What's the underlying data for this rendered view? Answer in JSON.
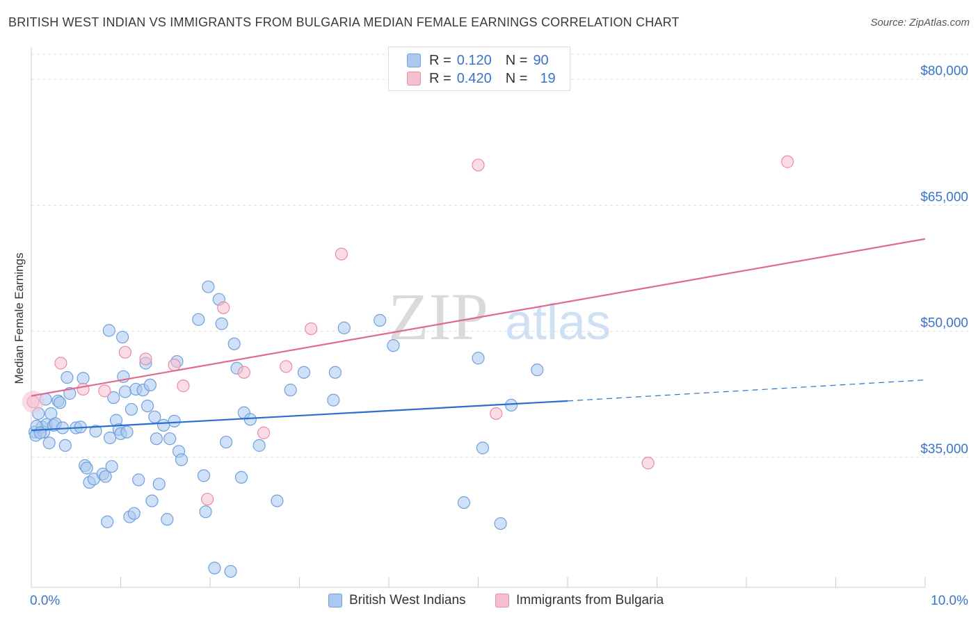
{
  "title": "BRITISH WEST INDIAN VS IMMIGRANTS FROM BULGARIA MEDIAN FEMALE EARNINGS CORRELATION CHART",
  "source": "Source: ZipAtlas.com",
  "watermark": {
    "zip": "ZIP",
    "atlas": "atlas"
  },
  "legend": {
    "rows": [
      {
        "r_label": "R =",
        "r_value": "0.120",
        "n_label": "N =",
        "n_value": "90"
      },
      {
        "r_label": "R =",
        "r_value": "0.420",
        "n_label": "N =",
        "n_value": "19"
      }
    ]
  },
  "bottom_legend": {
    "series1": "British West Indians",
    "series2": "Immigrants from Bulgaria"
  },
  "colors": {
    "blue_fill": "#aac8f0",
    "blue_stroke": "#6fa0dc",
    "blue_line": "#2a6fcb",
    "pink_fill": "#f6bfd0",
    "pink_stroke": "#e98aa8",
    "pink_line": "#e0698f",
    "axis_text": "#3b73c9",
    "grid": "#e0e0e0"
  },
  "chart_data": {
    "type": "scatter",
    "title": "BRITISH WEST INDIAN VS IMMIGRANTS FROM BULGARIA MEDIAN FEMALE EARNINGS CORRELATION CHART",
    "xlabel": "",
    "ylabel": "Median Female Earnings",
    "xlim": [
      0,
      10
    ],
    "ylim": [
      19500,
      83000
    ],
    "x_tick_labels": [
      {
        "x": 0,
        "label": "0.0%"
      },
      {
        "x": 10,
        "label": "10.0%"
      }
    ],
    "y_ticks": [
      {
        "y": 80000,
        "label": "$80,000"
      },
      {
        "y": 65000,
        "label": "$65,000"
      },
      {
        "y": 50000,
        "label": "$50,000"
      },
      {
        "y": 35000,
        "label": "$35,000"
      }
    ],
    "series": [
      {
        "name": "British West Indians",
        "r": 0.12,
        "n": 90,
        "trend": {
          "x0": 0.0,
          "y0": 38200,
          "x1": 6.0,
          "y1": 41700,
          "dash_x1": 10.0,
          "dash_y1": 44200
        },
        "points": [
          [
            0.04,
            38000
          ],
          [
            0.05,
            37600
          ],
          [
            0.08,
            40200
          ],
          [
            0.12,
            38600
          ],
          [
            0.14,
            38000
          ],
          [
            0.17,
            38900
          ],
          [
            0.2,
            36700
          ],
          [
            0.22,
            40200
          ],
          [
            0.25,
            38800
          ],
          [
            0.27,
            39000
          ],
          [
            0.3,
            41700
          ],
          [
            0.32,
            41500
          ],
          [
            0.35,
            38500
          ],
          [
            0.38,
            36400
          ],
          [
            0.4,
            44500
          ],
          [
            0.43,
            42600
          ],
          [
            0.5,
            38500
          ],
          [
            0.55,
            38600
          ],
          [
            0.58,
            44400
          ],
          [
            0.6,
            34000
          ],
          [
            0.62,
            33700
          ],
          [
            0.65,
            32000
          ],
          [
            0.7,
            32400
          ],
          [
            0.72,
            38100
          ],
          [
            0.8,
            33000
          ],
          [
            0.83,
            32700
          ],
          [
            0.85,
            27300
          ],
          [
            0.87,
            50100
          ],
          [
            0.88,
            37300
          ],
          [
            0.9,
            33900
          ],
          [
            0.92,
            42100
          ],
          [
            0.95,
            39400
          ],
          [
            0.98,
            38300
          ],
          [
            1.0,
            37800
          ],
          [
            1.02,
            49300
          ],
          [
            1.03,
            44600
          ],
          [
            1.05,
            42800
          ],
          [
            1.07,
            38000
          ],
          [
            1.1,
            27900
          ],
          [
            1.12,
            40700
          ],
          [
            1.15,
            28300
          ],
          [
            1.17,
            43100
          ],
          [
            1.2,
            32300
          ],
          [
            1.25,
            43000
          ],
          [
            1.28,
            46200
          ],
          [
            1.3,
            41100
          ],
          [
            1.33,
            43600
          ],
          [
            1.35,
            29800
          ],
          [
            1.38,
            39800
          ],
          [
            1.4,
            37200
          ],
          [
            1.43,
            31800
          ],
          [
            1.48,
            38800
          ],
          [
            1.52,
            27600
          ],
          [
            1.55,
            37200
          ],
          [
            1.6,
            39300
          ],
          [
            1.63,
            46400
          ],
          [
            1.65,
            35700
          ],
          [
            1.68,
            34700
          ],
          [
            1.87,
            51400
          ],
          [
            1.93,
            32800
          ],
          [
            1.95,
            28500
          ],
          [
            1.98,
            55300
          ],
          [
            2.05,
            21800
          ],
          [
            2.1,
            53800
          ],
          [
            2.13,
            50900
          ],
          [
            2.18,
            36800
          ],
          [
            2.23,
            21400
          ],
          [
            2.27,
            48500
          ],
          [
            2.3,
            45600
          ],
          [
            2.35,
            32600
          ],
          [
            2.38,
            40300
          ],
          [
            2.45,
            39500
          ],
          [
            2.55,
            36400
          ],
          [
            2.75,
            29800
          ],
          [
            2.9,
            43000
          ],
          [
            3.05,
            45100
          ],
          [
            3.38,
            41800
          ],
          [
            3.4,
            45100
          ],
          [
            3.5,
            50400
          ],
          [
            3.9,
            51300
          ],
          [
            4.05,
            48300
          ],
          [
            4.84,
            29600
          ],
          [
            5.0,
            46800
          ],
          [
            5.05,
            36100
          ],
          [
            5.25,
            27100
          ],
          [
            5.37,
            41200
          ],
          [
            5.66,
            45400
          ],
          [
            0.06,
            38700
          ],
          [
            0.1,
            37900
          ],
          [
            0.16,
            41900
          ]
        ]
      },
      {
        "name": "Immigrants from Bulgaria",
        "r": 0.42,
        "n": 19,
        "trend": {
          "x0": 0.0,
          "y0": 42300,
          "x1": 10.0,
          "y1": 61000
        },
        "points": [
          [
            0.02,
            41600
          ],
          [
            0.33,
            46200
          ],
          [
            0.58,
            43100
          ],
          [
            0.82,
            42900
          ],
          [
            1.05,
            47500
          ],
          [
            1.28,
            46700
          ],
          [
            1.6,
            46000
          ],
          [
            1.7,
            43500
          ],
          [
            1.97,
            30000
          ],
          [
            2.15,
            52800
          ],
          [
            2.38,
            45100
          ],
          [
            2.6,
            37900
          ],
          [
            2.85,
            45800
          ],
          [
            3.13,
            50300
          ],
          [
            3.47,
            59200
          ],
          [
            5.0,
            69800
          ],
          [
            5.2,
            40200
          ],
          [
            6.9,
            34300
          ],
          [
            8.46,
            70200
          ]
        ]
      }
    ]
  }
}
